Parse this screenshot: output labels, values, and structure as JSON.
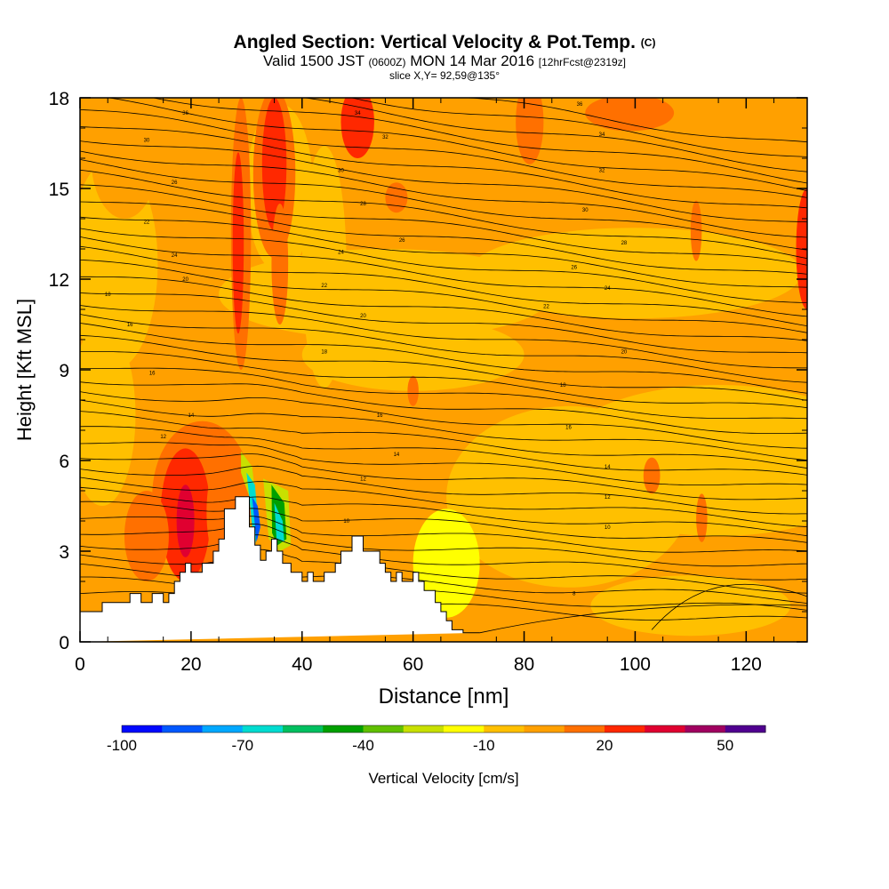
{
  "title": {
    "main": "Angled Section: Vertical Velocity & Pot.Temp.",
    "unit": "(C)",
    "valid": "Valid 1500 JST",
    "zulu": "(0600Z)",
    "date": "MON 14 Mar 2016",
    "forecast": "[12hrFcst@2319z]",
    "slice": "slice X,Y= 92,59@135°"
  },
  "chart_data": {
    "type": "heatmap",
    "title": "Angled Section: Vertical Velocity & Pot.Temp. (C)",
    "xlabel": "Distance [nm]",
    "ylabel": "Height [Kft MSL]",
    "xlim": [
      0,
      131
    ],
    "ylim": [
      0,
      18
    ],
    "x_ticks": [
      "0",
      "20",
      "40",
      "60",
      "80",
      "100",
      "120"
    ],
    "y_ticks": [
      "0",
      "3",
      "6",
      "9",
      "12",
      "15",
      "18"
    ],
    "colorbar": {
      "label": "Vertical Velocity [cm/s]",
      "levels": [
        -100,
        -90,
        -80,
        -70,
        -60,
        -50,
        -40,
        -30,
        -20,
        -10,
        0,
        10,
        20,
        30,
        40,
        50,
        60
      ],
      "tick_labels": [
        "-100",
        "-70",
        "-40",
        "-10",
        "20",
        "50"
      ],
      "colors": [
        "#0008ff",
        "#0058ff",
        "#00a8ff",
        "#00dcd0",
        "#00c060",
        "#00a000",
        "#60c000",
        "#c8e000",
        "#ffff00",
        "#ffc000",
        "#ffa000",
        "#ff7000",
        "#ff2800",
        "#e00030",
        "#a00060",
        "#500090"
      ]
    },
    "background_color": "#ffa000",
    "terrain": {
      "x": [
        0,
        4,
        4,
        9,
        9,
        11,
        11,
        13,
        13,
        15,
        15,
        16,
        16,
        17,
        17,
        18,
        18,
        19,
        19,
        20,
        20,
        22,
        22,
        24,
        24,
        25,
        25,
        26,
        26,
        28,
        28,
        30.5,
        30.5,
        31.5,
        31.5,
        32.5,
        32.5,
        33.5,
        33.5,
        34.5,
        34.5,
        35.5,
        35.5,
        36.5,
        36.5,
        38,
        38,
        40,
        40,
        41,
        41,
        42,
        42,
        44,
        44,
        46,
        46,
        47,
        47,
        49,
        49,
        51,
        51,
        54,
        54,
        55,
        55,
        56,
        56,
        57,
        57,
        58,
        58,
        60,
        60,
        61,
        61,
        62,
        62,
        64,
        64,
        65,
        65,
        66,
        66,
        67,
        67,
        69,
        69,
        72,
        72,
        131
      ],
      "h": [
        1,
        1,
        1.3,
        1.3,
        1.6,
        1.6,
        1.3,
        1.3,
        1.6,
        1.6,
        1.3,
        1.3,
        1.6,
        1.6,
        2,
        2,
        2.3,
        2.3,
        2.6,
        2.6,
        2.3,
        2.3,
        2.6,
        2.6,
        3,
        3,
        3.4,
        3.4,
        4.4,
        4.4,
        4.8,
        4.8,
        3.8,
        3.8,
        3.2,
        3.2,
        2.7,
        2.7,
        3.0,
        3.0,
        3.4,
        3.4,
        3.0,
        3.0,
        2.6,
        2.6,
        2.3,
        2.3,
        2,
        2,
        2.3,
        2.3,
        2,
        2,
        2.3,
        2.3,
        2.6,
        2.6,
        3,
        3,
        3.5,
        3.5,
        3,
        3,
        2.6,
        2.6,
        2.3,
        2.3,
        2,
        2,
        2.3,
        2.3,
        2,
        2,
        2.3,
        2.3,
        2,
        2,
        1.7,
        1.7,
        1.3,
        1.3,
        1,
        1,
        0.7,
        0.7,
        0.4,
        0.4,
        0.3,
        0.3,
        0.3
      ]
    },
    "theta_labels": [
      "36",
      "34",
      "32",
      "30",
      "28",
      "26",
      "24",
      "22",
      "20",
      "18",
      "16",
      "14",
      "12",
      "10",
      "8"
    ],
    "theta_sample_labels": [
      {
        "x": 19,
        "h": 17.5,
        "text": "36"
      },
      {
        "x": 50,
        "h": 17.5,
        "text": "34"
      },
      {
        "x": 90,
        "h": 17.8,
        "text": "36"
      },
      {
        "x": 12,
        "h": 16.6,
        "text": "30"
      },
      {
        "x": 55,
        "h": 16.7,
        "text": "32"
      },
      {
        "x": 94,
        "h": 16.8,
        "text": "34"
      },
      {
        "x": 17,
        "h": 15.2,
        "text": "26"
      },
      {
        "x": 47,
        "h": 15.6,
        "text": "30"
      },
      {
        "x": 94,
        "h": 15.6,
        "text": "32"
      },
      {
        "x": 12,
        "h": 13.9,
        "text": "22"
      },
      {
        "x": 51,
        "h": 14.5,
        "text": "28"
      },
      {
        "x": 91,
        "h": 14.3,
        "text": "30"
      },
      {
        "x": 17,
        "h": 12.8,
        "text": "24"
      },
      {
        "x": 58,
        "h": 13.3,
        "text": "26"
      },
      {
        "x": 98,
        "h": 13.2,
        "text": "28"
      },
      {
        "x": 19,
        "h": 12.0,
        "text": "20"
      },
      {
        "x": 47,
        "h": 12.9,
        "text": "24"
      },
      {
        "x": 89,
        "h": 12.4,
        "text": "26"
      },
      {
        "x": 5,
        "h": 11.5,
        "text": "18"
      },
      {
        "x": 44,
        "h": 11.8,
        "text": "22"
      },
      {
        "x": 95,
        "h": 11.7,
        "text": "24"
      },
      {
        "x": 9,
        "h": 10.5,
        "text": "16"
      },
      {
        "x": 51,
        "h": 10.8,
        "text": "20"
      },
      {
        "x": 84,
        "h": 11.1,
        "text": "22"
      },
      {
        "x": 44,
        "h": 9.6,
        "text": "18"
      },
      {
        "x": 98,
        "h": 9.6,
        "text": "20"
      },
      {
        "x": 13,
        "h": 8.9,
        "text": "16"
      },
      {
        "x": 87,
        "h": 8.5,
        "text": "18"
      },
      {
        "x": 20,
        "h": 7.5,
        "text": "14"
      },
      {
        "x": 54,
        "h": 7.5,
        "text": "16"
      },
      {
        "x": 88,
        "h": 7.1,
        "text": "16"
      },
      {
        "x": 15,
        "h": 6.8,
        "text": "12"
      },
      {
        "x": 57,
        "h": 6.2,
        "text": "14"
      },
      {
        "x": 95,
        "h": 5.8,
        "text": "14"
      },
      {
        "x": 51,
        "h": 5.4,
        "text": "12"
      },
      {
        "x": 95,
        "h": 4.8,
        "text": "12"
      },
      {
        "x": 48,
        "h": 4.0,
        "text": "10"
      },
      {
        "x": 95,
        "h": 3.8,
        "text": "10"
      },
      {
        "x": 89,
        "h": 1.6,
        "text": "8"
      }
    ]
  }
}
